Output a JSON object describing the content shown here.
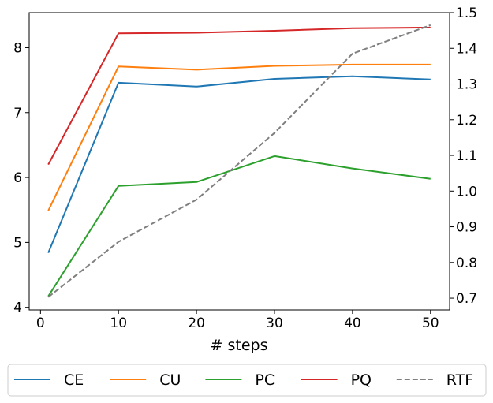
{
  "chart_data": {
    "type": "line",
    "xlabel": "# steps",
    "ylabel_left": "",
    "ylabel_right": "",
    "x": [
      1,
      10,
      20,
      30,
      40,
      50
    ],
    "xlim": [
      -1.45,
      52.45
    ],
    "xticks": [
      "0",
      "10",
      "20",
      "30",
      "40",
      "50"
    ],
    "xtick_values": [
      0,
      10,
      20,
      30,
      40,
      50
    ],
    "ylim_left": [
      3.96,
      8.54
    ],
    "yticks_left": [
      "4",
      "5",
      "6",
      "7",
      "8"
    ],
    "ytick_values_left": [
      4,
      5,
      6,
      7,
      8
    ],
    "ylim_right": [
      0.667,
      1.5
    ],
    "yticks_right": [
      "0.7",
      "0.8",
      "0.9",
      "1.0",
      "1.1",
      "1.2",
      "1.3",
      "1.4",
      "1.5"
    ],
    "ytick_values_right": [
      0.7,
      0.8,
      0.9,
      1.0,
      1.1,
      1.2,
      1.3,
      1.4,
      1.5
    ],
    "grid": false,
    "legend_position": "bottom-center",
    "series": [
      {
        "name": "CE",
        "axis": "left",
        "color": "#1f77b4",
        "dash": "solid",
        "values": [
          4.84,
          7.46,
          7.4,
          7.52,
          7.56,
          7.51
        ]
      },
      {
        "name": "CU",
        "axis": "left",
        "color": "#ff7f0e",
        "dash": "solid",
        "values": [
          5.49,
          7.71,
          7.66,
          7.72,
          7.74,
          7.74
        ]
      },
      {
        "name": "PC",
        "axis": "left",
        "color": "#2ca02c",
        "dash": "solid",
        "values": [
          4.17,
          5.87,
          5.93,
          6.33,
          6.14,
          5.98
        ]
      },
      {
        "name": "PQ",
        "axis": "left",
        "color": "#d62728",
        "dash": "solid",
        "values": [
          6.2,
          8.22,
          8.23,
          8.26,
          8.3,
          8.31
        ]
      },
      {
        "name": "RTF",
        "axis": "right",
        "color": "#7f7f7f",
        "dash": "dashed",
        "values": [
          0.703,
          0.858,
          0.976,
          1.163,
          1.385,
          1.465
        ]
      }
    ]
  }
}
